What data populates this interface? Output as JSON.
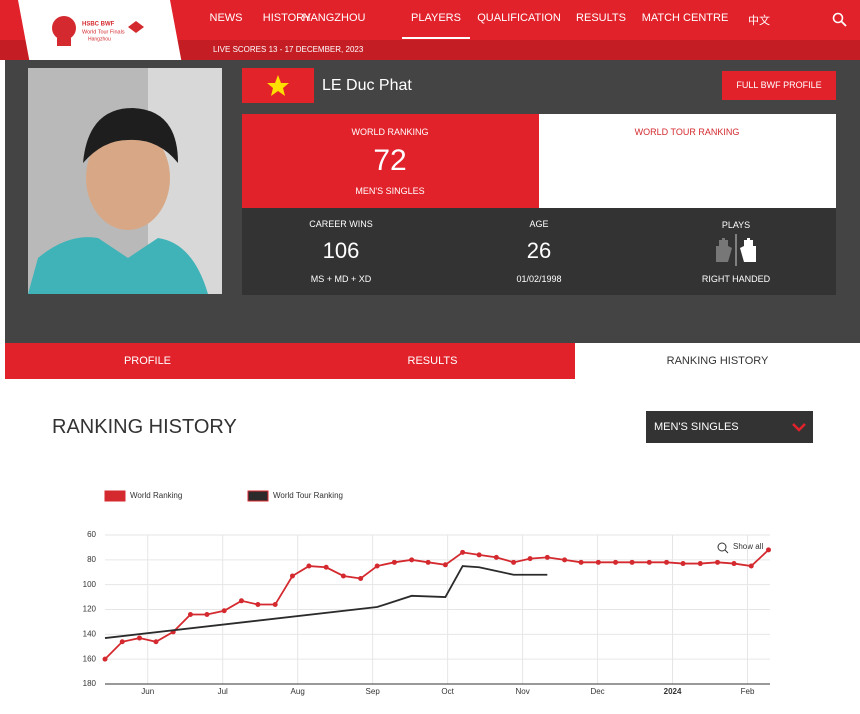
{
  "logo": {
    "line1": "HSBC BWF",
    "line2": "World Tour Finals",
    "line3": "Hangzhou"
  },
  "nav": {
    "items": [
      "NEWS",
      "HISTORY",
      "HANGZHOU",
      "PLAYERS",
      "QUALIFICATION",
      "RESULTS",
      "MATCH CENTRE",
      "中文"
    ],
    "live_scores": "LIVE SCORES 13 - 17 DECEMBER, 2023"
  },
  "player": {
    "name": "LE Duc Phat",
    "button": "FULL BWF PROFILE",
    "world_ranking": {
      "label": "WORLD RANKING",
      "value": 72,
      "sub": "MEN'S SINGLES"
    },
    "world_tour_ranking": {
      "label": "WORLD TOUR RANKING"
    },
    "career_wins": {
      "label": "CAREER WINS",
      "value": 106,
      "sub": "MS + MD + XD"
    },
    "age": {
      "label": "AGE",
      "value": 26,
      "sub": "01/02/1998"
    },
    "plays": {
      "label": "PLAYS",
      "sub": "RIGHT HANDED"
    }
  },
  "tabs": [
    "PROFILE",
    "RESULTS",
    "RANKING HISTORY"
  ],
  "section": {
    "title": "RANKING HISTORY",
    "dropdown": "MEN'S SINGLES"
  },
  "chart_data": {
    "type": "line",
    "show_all": "Show all",
    "grid": true,
    "xlim": [
      -0.07,
      8.8
    ],
    "xticks": [
      {
        "value": 0.5,
        "label": "Jun"
      },
      {
        "value": 1.5,
        "label": "Jul"
      },
      {
        "value": 2.5,
        "label": "Aug"
      },
      {
        "value": 3.5,
        "label": "Sep"
      },
      {
        "value": 4.5,
        "label": "Oct"
      },
      {
        "value": 5.5,
        "label": "Nov"
      },
      {
        "value": 6.5,
        "label": "Dec"
      },
      {
        "value": 7.5,
        "label": "2024"
      },
      {
        "value": 8.5,
        "label": "Feb"
      }
    ],
    "ylim": [
      180,
      60
    ],
    "yticks": [
      60,
      80,
      100,
      120,
      140,
      160,
      180
    ],
    "series": [
      {
        "name": "World Ranking",
        "color": "#d42a2f",
        "markers": true,
        "x": [
          -0.07,
          0.16,
          0.39,
          0.61,
          0.84,
          1.07,
          1.29,
          1.52,
          1.75,
          1.97,
          2.2,
          2.43,
          2.65,
          2.88,
          3.11,
          3.34,
          3.56,
          3.79,
          4.02,
          4.24,
          4.47,
          4.7,
          4.92,
          5.15,
          5.38,
          5.6,
          5.83,
          6.06,
          6.28,
          6.51,
          6.74,
          6.96,
          7.19,
          7.42,
          7.64,
          7.87,
          8.1,
          8.32,
          8.55,
          8.78
        ],
        "values": [
          160,
          146,
          143,
          146,
          138,
          124,
          124,
          121,
          113,
          116,
          116,
          93,
          85,
          86,
          93,
          95,
          85,
          82,
          80,
          82,
          84,
          74,
          76,
          78,
          82,
          79,
          78,
          80,
          82,
          82,
          82,
          82,
          82,
          82,
          83,
          83,
          82,
          83,
          85,
          72
        ]
      },
      {
        "name": "World Tour Ranking",
        "color": "#2b2b2b",
        "markers": false,
        "x": [
          -0.07,
          3.56,
          4.02,
          4.47,
          4.7,
          4.92,
          5.15,
          5.38,
          5.6,
          5.83
        ],
        "values": [
          143,
          118,
          109,
          110,
          85,
          86,
          89,
          92,
          92,
          92
        ]
      }
    ]
  }
}
